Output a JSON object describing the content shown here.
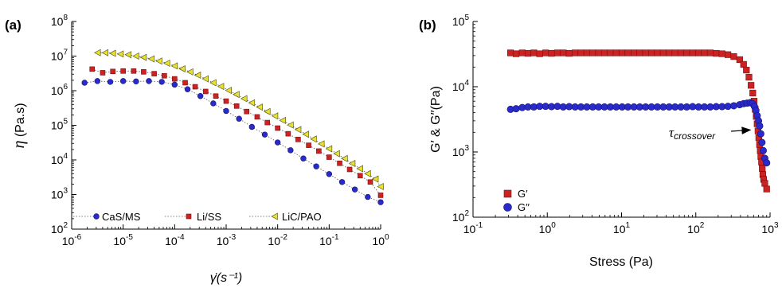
{
  "chart_data": [
    {
      "panel_label": "(a)",
      "type": "scatter",
      "xscale": "log",
      "yscale": "log",
      "xlim": [
        1e-06,
        1
      ],
      "ylim": [
        100,
        100000000.0
      ],
      "xlabel": "γ̇(s⁻¹)",
      "ylabel_symbol": "η",
      "ylabel_unit": "(Pa.s)",
      "xticks": [
        "10-6",
        "10-5",
        "10-4",
        "10-3",
        "10-2",
        "10-1",
        "100"
      ],
      "yticks": [
        "102",
        "103",
        "104",
        "105",
        "106",
        "107",
        "108"
      ],
      "legend_position": "bottom",
      "series": [
        {
          "name": "CaS/MS",
          "marker": "circle",
          "color": "#2a2acc",
          "line": "dotted",
          "x": [
            1.78e-06,
            3.16e-06,
            5.62e-06,
            1e-05,
            1.78e-05,
            3.16e-05,
            5.62e-05,
            0.0001,
            0.000178,
            0.000316,
            0.000562,
            0.001,
            0.00178,
            0.00316,
            0.00562,
            0.01,
            0.0178,
            0.0316,
            0.0562,
            0.1,
            0.178,
            0.316,
            0.562,
            1.0
          ],
          "y": [
            1700000.0,
            1900000.0,
            1800000.0,
            1900000.0,
            1850000.0,
            1900000.0,
            1800000.0,
            1500000.0,
            1100000.0,
            700000.0,
            430000.0,
            260000.0,
            155000.0,
            90000.0,
            54000.0,
            32000.0,
            19000.0,
            11000.0,
            6500.0,
            3900.0,
            2300.0,
            1400.0,
            850.0,
            600.0
          ]
        },
        {
          "name": "Li/SS",
          "marker": "square",
          "color": "#cc2222",
          "line": "dotted",
          "x": [
            2.5e-06,
            4e-06,
            6.3e-06,
            1e-05,
            1.6e-05,
            2.5e-05,
            4e-05,
            6.3e-05,
            0.0001,
            0.00016,
            0.00025,
            0.0004,
            0.00063,
            0.001,
            0.0016,
            0.0025,
            0.004,
            0.0063,
            0.01,
            0.016,
            0.025,
            0.04,
            0.063,
            0.1,
            0.16,
            0.25,
            0.4,
            0.63,
            1.0
          ],
          "y": [
            4200000.0,
            3300000.0,
            3600000.0,
            3700000.0,
            3700000.0,
            3500000.0,
            3100000.0,
            2700000.0,
            2200000.0,
            1700000.0,
            1300000.0,
            950000.0,
            700000.0,
            500000.0,
            360000.0,
            250000.0,
            175000.0,
            120000.0,
            83000.0,
            57000.0,
            39000.0,
            26500.0,
            18000.0,
            12000.0,
            8000.0,
            5300.0,
            3500.0,
            2300.0,
            950.0
          ]
        },
        {
          "name": "LiC/PAO",
          "marker": "triangle-left",
          "color": "#e8e030",
          "line": "dotted",
          "x": [
            3.2e-06,
            4.5e-06,
            6.3e-06,
            8.9e-06,
            1.26e-05,
            1.78e-05,
            2.5e-05,
            3.55e-05,
            5e-05,
            7.1e-05,
            0.0001,
            0.000141,
            0.0002,
            0.000282,
            0.000398,
            0.000562,
            0.000794,
            0.00112,
            0.00158,
            0.00224,
            0.00316,
            0.00447,
            0.00631,
            0.00891,
            0.0126,
            0.0178,
            0.0251,
            0.0355,
            0.0501,
            0.0708,
            0.1,
            0.141,
            0.2,
            0.282,
            0.398,
            0.562,
            0.794,
            1.0
          ],
          "y": [
            12500000.0,
            12500000.0,
            12000000.0,
            11500000.0,
            11000000.0,
            10000000.0,
            9200000.0,
            8300000.0,
            7200000.0,
            6200000.0,
            5200000.0,
            4300000.0,
            3500000.0,
            2800000.0,
            2200000.0,
            1700000.0,
            1330000.0,
            1020000.0,
            780000.0,
            590000.0,
            445000.0,
            335000.0,
            250000.0,
            186000.0,
            138000.0,
            102000.0,
            75000.0,
            55000.0,
            40000.0,
            29000.0,
            21000.0,
            15200.0,
            11000.0,
            7900.0,
            5600.0,
            4000.0,
            2800.0,
            1700.0
          ]
        }
      ]
    },
    {
      "panel_label": "(b)",
      "type": "scatter",
      "xscale": "log",
      "yscale": "log",
      "xlim": [
        0.1,
        1000
      ],
      "ylim": [
        100,
        100000
      ],
      "xlabel": "Stress (Pa)",
      "ylabel": "G′ & G′′(Pa)",
      "xticks": [
        "10-1",
        "100",
        "101",
        "102",
        "103"
      ],
      "yticks": [
        "102",
        "103",
        "104",
        "105"
      ],
      "legend_position": "bottom-left",
      "annotation": {
        "text": "τcrossover",
        "x": 570,
        "y": 2300
      },
      "series": [
        {
          "name": "G′",
          "marker": "square",
          "color": "#cc2222",
          "x": [
            0.32,
            0.38,
            0.46,
            0.55,
            0.66,
            0.79,
            0.95,
            1.14,
            1.37,
            1.64,
            1.97,
            2.37,
            2.84,
            3.41,
            4.09,
            4.91,
            5.89,
            7.07,
            8.48,
            10.2,
            12.2,
            14.7,
            17.6,
            21.1,
            25.3,
            30.4,
            36.5,
            43.8,
            52.5,
            63.0,
            75.6,
            90.7,
            108.9,
            130.7,
            156.8,
            188.2,
            225.8,
            271,
            325,
            390,
            440,
            480,
            520,
            555,
            585,
            610,
            632,
            652,
            670,
            688,
            705,
            722,
            738,
            752,
            768,
            785,
            800,
            820,
            850,
            900
          ],
          "y": [
            33000,
            32000,
            33000,
            32500,
            33000,
            32000,
            33000,
            32500,
            33000,
            33000,
            32500,
            33000,
            33000,
            33000,
            33000,
            33000,
            33000,
            33000,
            33000,
            33000,
            33000,
            33000,
            33000,
            33000,
            33000,
            33000,
            33000,
            33000,
            33000,
            33000,
            33000,
            33000,
            33000,
            33000,
            33000,
            32500,
            32000,
            31000,
            29000,
            26000,
            22000,
            18000,
            14000,
            10500,
            8000,
            6000,
            4500,
            3500,
            2700,
            2100,
            1650,
            1300,
            1050,
            850,
            700,
            560,
            450,
            380,
            330,
            270
          ]
        },
        {
          "name": "G′′",
          "marker": "circle",
          "color": "#2a2acc",
          "x": [
            0.32,
            0.38,
            0.46,
            0.55,
            0.66,
            0.79,
            0.95,
            1.14,
            1.37,
            1.64,
            1.97,
            2.37,
            2.84,
            3.41,
            4.09,
            4.91,
            5.89,
            7.07,
            8.48,
            10.2,
            12.2,
            14.7,
            17.6,
            21.1,
            25.3,
            30.4,
            36.5,
            43.8,
            52.5,
            63.0,
            75.6,
            90.7,
            108.9,
            130.7,
            156.8,
            188.2,
            225.8,
            271,
            325,
            390,
            440,
            490,
            540,
            580,
            615,
            645,
            672,
            700,
            725,
            750,
            778,
            810,
            850,
            900
          ],
          "y": [
            4500,
            4600,
            4800,
            4900,
            4900,
            5000,
            5000,
            4950,
            5000,
            4900,
            4950,
            4900,
            4900,
            4900,
            4900,
            4900,
            4900,
            4900,
            4900,
            4900,
            4900,
            4900,
            4900,
            4900,
            4900,
            4900,
            4900,
            4900,
            4900,
            4900,
            4900,
            4950,
            4900,
            4900,
            4900,
            4950,
            4950,
            5000,
            5100,
            5300,
            5500,
            5600,
            5700,
            5500,
            5000,
            4300,
            3600,
            3000,
            2500,
            1900,
            1400,
            1050,
            800,
            680
          ]
        }
      ]
    }
  ]
}
